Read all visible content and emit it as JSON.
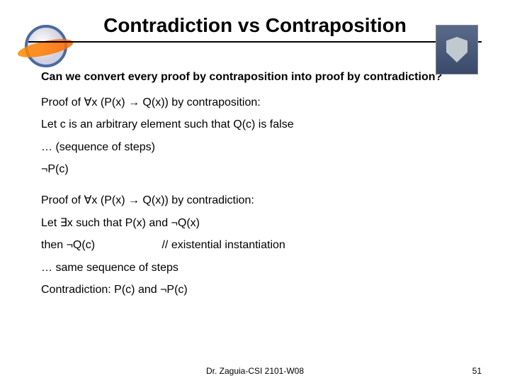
{
  "title": "Contradiction vs Contraposition",
  "question": "Can we convert every proof by contraposition into proof by contradiction?",
  "lines": {
    "l1": "Proof of  ∀x (P(x) → Q(x)) by contraposition:",
    "l2": "Let c is an arbitrary element such that Q(c) is false",
    "l3": "… (sequence of steps)",
    "l4": "¬P(c)",
    "l5": "Proof of  ∀x (P(x) → Q(x)) by contradiction:",
    "l6": "Let ∃x such that P(x) and ¬Q(x)",
    "l7a": "then ¬Q(c)",
    "l7b": "// existential instantiation",
    "l8": "… same sequence of steps",
    "l9": "Contradiction: P(c) and ¬P(c)"
  },
  "footer": {
    "author": "Dr. Zaguia-CSI 2101-W08",
    "page": "51"
  },
  "colors": {
    "text": "#000000",
    "bg": "#ffffff",
    "rule": "#000000",
    "logo_ring": "#4a6aa0",
    "logo_swoosh": "#ff8c00",
    "crest_bg": "#3a4a6a"
  }
}
